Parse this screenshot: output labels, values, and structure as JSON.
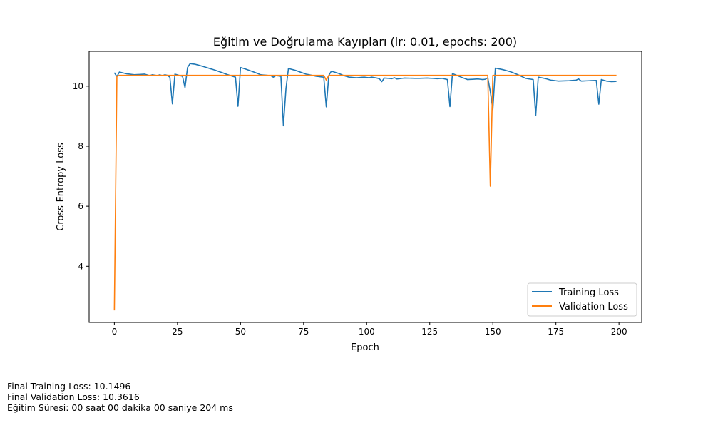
{
  "chart_data": {
    "type": "line",
    "title": "Eğitim ve Doğrulama Kayıpları (lr: 0.01, epochs: 200)",
    "xlabel": "Epoch",
    "ylabel": "Cross-Entropy Loss",
    "xlim": [
      -10,
      209
    ],
    "ylim": [
      2.13,
      11.16
    ],
    "xticks": [
      0,
      25,
      50,
      75,
      100,
      125,
      150,
      175,
      200
    ],
    "yticks": [
      4,
      6,
      8,
      10
    ],
    "grid": false,
    "legend_position": "lower-right",
    "series": [
      {
        "name": "Training Loss",
        "color": "#1f77b4",
        "keypoints": [
          [
            0,
            10.45
          ],
          [
            1,
            10.32
          ],
          [
            2,
            10.47
          ],
          [
            5,
            10.41
          ],
          [
            8,
            10.38
          ],
          [
            12,
            10.4
          ],
          [
            14,
            10.35
          ],
          [
            15,
            10.38
          ],
          [
            17,
            10.35
          ],
          [
            18,
            10.38
          ],
          [
            19,
            10.35
          ],
          [
            20,
            10.38
          ],
          [
            21,
            10.36
          ],
          [
            22,
            10.3
          ],
          [
            23,
            9.41
          ],
          [
            24,
            10.4
          ],
          [
            26,
            10.35
          ],
          [
            27,
            10.33
          ],
          [
            28,
            9.95
          ],
          [
            29,
            10.62
          ],
          [
            30,
            10.75
          ],
          [
            32,
            10.73
          ],
          [
            35,
            10.66
          ],
          [
            40,
            10.53
          ],
          [
            45,
            10.38
          ],
          [
            48,
            10.3
          ],
          [
            49,
            9.33
          ],
          [
            50,
            10.62
          ],
          [
            52,
            10.57
          ],
          [
            55,
            10.48
          ],
          [
            58,
            10.38
          ],
          [
            62,
            10.35
          ],
          [
            63,
            10.3
          ],
          [
            64,
            10.35
          ],
          [
            66,
            10.33
          ],
          [
            67,
            8.68
          ],
          [
            68,
            9.9
          ],
          [
            69,
            10.59
          ],
          [
            72,
            10.52
          ],
          [
            76,
            10.4
          ],
          [
            80,
            10.33
          ],
          [
            83,
            10.3
          ],
          [
            84,
            9.31
          ],
          [
            85,
            10.36
          ],
          [
            86,
            10.5
          ],
          [
            89,
            10.42
          ],
          [
            91,
            10.35
          ],
          [
            93,
            10.3
          ],
          [
            96,
            10.28
          ],
          [
            99,
            10.3
          ],
          [
            101,
            10.28
          ],
          [
            102,
            10.3
          ],
          [
            104,
            10.27
          ],
          [
            105,
            10.25
          ],
          [
            106,
            10.15
          ],
          [
            107,
            10.27
          ],
          [
            110,
            10.25
          ],
          [
            111,
            10.28
          ],
          [
            112,
            10.24
          ],
          [
            115,
            10.27
          ],
          [
            120,
            10.26
          ],
          [
            124,
            10.27
          ],
          [
            128,
            10.25
          ],
          [
            130,
            10.26
          ],
          [
            132,
            10.22
          ],
          [
            133,
            9.32
          ],
          [
            134,
            10.42
          ],
          [
            136,
            10.35
          ],
          [
            138,
            10.28
          ],
          [
            140,
            10.22
          ],
          [
            144,
            10.24
          ],
          [
            146,
            10.22
          ],
          [
            147,
            10.23
          ],
          [
            148,
            10.28
          ],
          [
            149,
            9.82
          ],
          [
            150,
            9.22
          ],
          [
            151,
            10.6
          ],
          [
            154,
            10.55
          ],
          [
            157,
            10.48
          ],
          [
            160,
            10.38
          ],
          [
            163,
            10.26
          ],
          [
            166,
            10.22
          ],
          [
            167,
            9.02
          ],
          [
            168,
            10.3
          ],
          [
            171,
            10.25
          ],
          [
            173,
            10.2
          ],
          [
            176,
            10.17
          ],
          [
            180,
            10.18
          ],
          [
            183,
            10.2
          ],
          [
            184,
            10.24
          ],
          [
            185,
            10.17
          ],
          [
            188,
            10.18
          ],
          [
            191,
            10.19
          ],
          [
            192,
            9.4
          ],
          [
            193,
            10.22
          ],
          [
            195,
            10.17
          ],
          [
            197,
            10.15
          ],
          [
            199,
            10.16
          ]
        ]
      },
      {
        "name": "Validation Loss",
        "color": "#ff7f0e",
        "keypoints": [
          [
            0,
            2.53
          ],
          [
            1,
            10.33
          ],
          [
            2,
            10.36
          ],
          [
            10,
            10.36
          ],
          [
            20,
            10.36
          ],
          [
            30,
            10.36
          ],
          [
            40,
            10.36
          ],
          [
            50,
            10.36
          ],
          [
            60,
            10.36
          ],
          [
            70,
            10.36
          ],
          [
            83,
            10.36
          ],
          [
            84,
            10.2
          ],
          [
            85,
            10.36
          ],
          [
            100,
            10.36
          ],
          [
            120,
            10.36
          ],
          [
            140,
            10.36
          ],
          [
            148,
            10.36
          ],
          [
            149,
            6.67
          ],
          [
            150,
            10.36
          ],
          [
            160,
            10.36
          ],
          [
            170,
            10.36
          ],
          [
            180,
            10.36
          ],
          [
            190,
            10.36
          ],
          [
            199,
            10.36
          ]
        ]
      }
    ]
  },
  "footer": {
    "line1": "Final Training Loss: 10.1496",
    "line2": "Final Validation Loss: 10.3616",
    "line3": "Eğitim Süresi: 00 saat 00 dakika 00 saniye 204 ms"
  }
}
